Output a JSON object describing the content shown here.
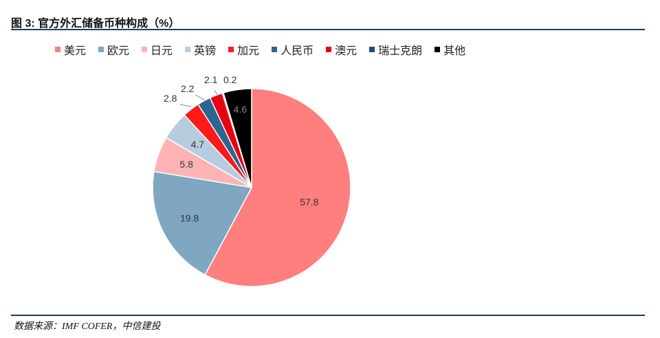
{
  "header": {
    "title": "图 3: 官方外汇储备币种构成（%）"
  },
  "footer": {
    "source": "数据来源：IMF COFER，中信建投"
  },
  "chart_data": {
    "type": "pie",
    "title": "图 3: 官方外汇储备币种构成（%）",
    "categories": [
      "美元",
      "欧元",
      "日元",
      "英镑",
      "加元",
      "人民币",
      "澳元",
      "瑞士克朗",
      "其他"
    ],
    "values": [
      57.8,
      19.8,
      5.8,
      4.7,
      2.8,
      2.2,
      2.1,
      0.2,
      4.6
    ],
    "labels": [
      "57.8",
      "19.8",
      "5.8",
      "4.7",
      "2.8",
      "2.2",
      "2.1",
      "0.2",
      "4.6"
    ],
    "colors": [
      "#ff7f7f",
      "#7fa7c1",
      "#ffb3b3",
      "#b8cce0",
      "#ff1a1a",
      "#2e6490",
      "#e60012",
      "#1f4e7a",
      "#000000"
    ],
    "legend_position": "top"
  }
}
